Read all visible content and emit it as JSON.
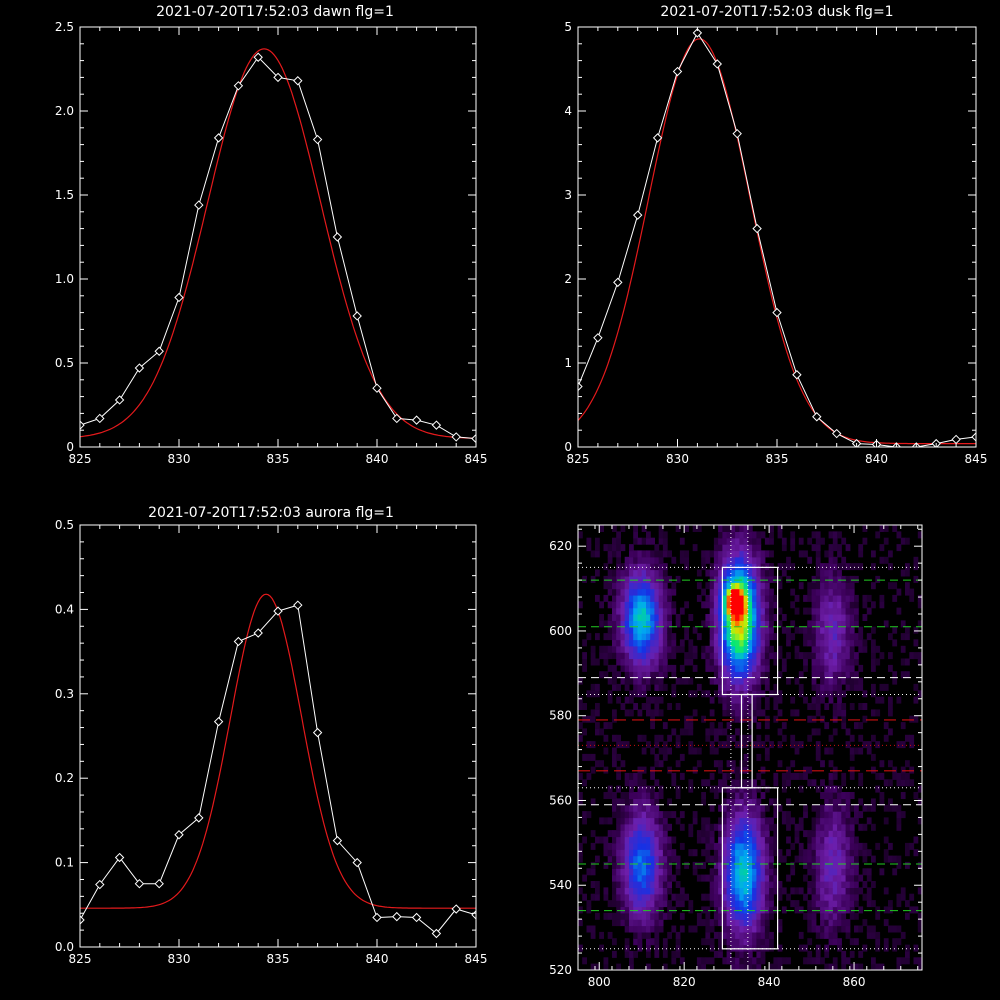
{
  "colors": {
    "background": "#000000",
    "axes": "#ffffff",
    "data_line": "#ffffff",
    "fit_line": "#e41a1c",
    "green_dash": "#22cc22",
    "red_dash": "#cc1111",
    "white_dash": "#ffffff",
    "box": "#ffffff"
  },
  "chart_data": [
    {
      "type": "line",
      "title": "2021-07-20T17:52:03 dawn flg=1",
      "xlim": [
        825,
        845
      ],
      "ylim": [
        0,
        2.5
      ],
      "xticks": [
        825,
        830,
        835,
        840,
        845
      ],
      "xtick_labels": [
        "825",
        "830",
        "835",
        "840",
        "845"
      ],
      "yticks": [
        0,
        0.5,
        1.0,
        1.5,
        2.0,
        2.5
      ],
      "ytick_labels": [
        "0",
        "0.5",
        "1.0",
        "1.5",
        "2.0",
        "2.5"
      ],
      "series": [
        {
          "role": "data",
          "marker": "diamond",
          "x": [
            825,
            826,
            827,
            828,
            829,
            830,
            831,
            832,
            833,
            834,
            835,
            836,
            837,
            838,
            839,
            840,
            841,
            842,
            843,
            844,
            845
          ],
          "y": [
            0.13,
            0.17,
            0.28,
            0.47,
            0.57,
            0.89,
            1.44,
            1.84,
            2.15,
            2.32,
            2.2,
            2.18,
            1.83,
            1.25,
            0.78,
            0.35,
            0.17,
            0.16,
            0.13,
            0.06,
            0.05
          ]
        },
        {
          "role": "fit",
          "model": "gaussian",
          "center": 834.3,
          "sigma": 2.85,
          "amplitude": 2.32,
          "offset": 0.05,
          "step": 0.1
        }
      ]
    },
    {
      "type": "line",
      "title": "2021-07-20T17:52:03 dusk flg=1",
      "xlim": [
        825,
        845
      ],
      "ylim": [
        0,
        5
      ],
      "xticks": [
        825,
        830,
        835,
        840,
        845
      ],
      "xtick_labels": [
        "825",
        "830",
        "835",
        "840",
        "845"
      ],
      "yticks": [
        0,
        1,
        2,
        3,
        4,
        5
      ],
      "ytick_labels": [
        "0",
        "1",
        "2",
        "3",
        "4",
        "5"
      ],
      "series": [
        {
          "role": "data",
          "marker": "diamond",
          "x": [
            825,
            826,
            827,
            828,
            829,
            830,
            831,
            832,
            833,
            834,
            835,
            836,
            837,
            838,
            839,
            840,
            841,
            842,
            843,
            844,
            845
          ],
          "y": [
            0.72,
            1.3,
            1.96,
            2.76,
            3.68,
            4.47,
            4.93,
            4.56,
            3.73,
            2.6,
            1.6,
            0.86,
            0.36,
            0.16,
            0.04,
            0.03,
            0.0,
            0.0,
            0.04,
            0.09,
            0.12
          ]
        },
        {
          "role": "fit",
          "model": "gaussian",
          "center": 831.1,
          "sigma": 2.55,
          "amplitude": 4.82,
          "offset": 0.04,
          "step": 0.1
        }
      ]
    },
    {
      "type": "line",
      "title": "2021-07-20T17:52:03 aurora flg=1",
      "xlim": [
        825,
        845
      ],
      "ylim": [
        0,
        0.5
      ],
      "xticks": [
        825,
        830,
        835,
        840,
        845
      ],
      "xtick_labels": [
        "825",
        "830",
        "835",
        "840",
        "845"
      ],
      "yticks": [
        0,
        0.1,
        0.2,
        0.3,
        0.4,
        0.5
      ],
      "ytick_labels": [
        "0.0",
        "0.1",
        "0.2",
        "0.3",
        "0.4",
        "0.5"
      ],
      "series": [
        {
          "role": "data",
          "marker": "diamond",
          "x": [
            825,
            826,
            827,
            828,
            829,
            830,
            831,
            832,
            833,
            834,
            835,
            836,
            837,
            838,
            839,
            840,
            841,
            842,
            843,
            844,
            845
          ],
          "y": [
            0.032,
            0.074,
            0.106,
            0.075,
            0.075,
            0.133,
            0.153,
            0.267,
            0.362,
            0.372,
            0.398,
            0.405,
            0.254,
            0.126,
            0.1,
            0.035,
            0.036,
            0.035,
            0.016,
            0.045,
            0.038
          ]
        },
        {
          "role": "fit",
          "model": "gaussian",
          "center": 834.4,
          "sigma": 1.8,
          "amplitude": 0.372,
          "offset": 0.046,
          "step": 0.1
        }
      ]
    },
    {
      "type": "heatmap",
      "title": "",
      "xlim": [
        795,
        876
      ],
      "ylim": [
        520,
        625
      ],
      "xticks": [
        800,
        820,
        840,
        860
      ],
      "xtick_labels": [
        "800",
        "820",
        "840",
        "860"
      ],
      "yticks": [
        520,
        540,
        560,
        580,
        600,
        620
      ],
      "ytick_labels": [
        "520",
        "540",
        "560",
        "580",
        "600",
        "620"
      ],
      "cell": {
        "dx": 1,
        "dy": 1.5
      },
      "blobs": [
        {
          "x": 810,
          "y": 603,
          "sx": 3.2,
          "sy": 7.5,
          "amp": 0.55
        },
        {
          "x": 810,
          "y": 545,
          "sx": 3.2,
          "sy": 8.5,
          "amp": 0.42
        },
        {
          "x": 833,
          "y": 603,
          "sx": 3.2,
          "sy": 9.5,
          "amp": 0.82
        },
        {
          "x": 832,
          "y": 607,
          "sx": 1.6,
          "sy": 2.5,
          "amp": 0.55
        },
        {
          "x": 834,
          "y": 543,
          "sx": 3.2,
          "sy": 9.5,
          "amp": 0.55
        },
        {
          "x": 855,
          "y": 600,
          "sx": 3.0,
          "sy": 9.0,
          "amp": 0.22
        },
        {
          "x": 855,
          "y": 545,
          "sx": 3.0,
          "sy": 10.0,
          "amp": 0.22
        }
      ],
      "boxes": [
        {
          "x0": 829,
          "x1": 842,
          "y0": 585,
          "y1": 615
        },
        {
          "x0": 829,
          "x1": 842,
          "y0": 525,
          "y1": 563
        },
        {
          "x0": 833.5,
          "x1": 836,
          "y0": 563,
          "y1": 585
        }
      ],
      "hlines": [
        {
          "y": 612,
          "style": "green_dash"
        },
        {
          "y": 601,
          "style": "green_dash"
        },
        {
          "y": 589,
          "style": "white_dash"
        },
        {
          "y": 579,
          "style": "red_dash"
        },
        {
          "y": 567,
          "style": "red_dash"
        },
        {
          "y": 559,
          "style": "white_dash"
        },
        {
          "y": 545,
          "style": "green_dash"
        },
        {
          "y": 534,
          "style": "green_dash"
        },
        {
          "y": 615,
          "style": "white_dot"
        },
        {
          "y": 585,
          "style": "white_dot"
        },
        {
          "y": 573,
          "style": "red_dot"
        },
        {
          "y": 563,
          "style": "white_dot"
        },
        {
          "y": 525,
          "style": "white_dot"
        }
      ],
      "vlines": [
        {
          "x": 831,
          "style": "white_dot"
        },
        {
          "x": 835,
          "style": "white_dot"
        }
      ]
    }
  ]
}
